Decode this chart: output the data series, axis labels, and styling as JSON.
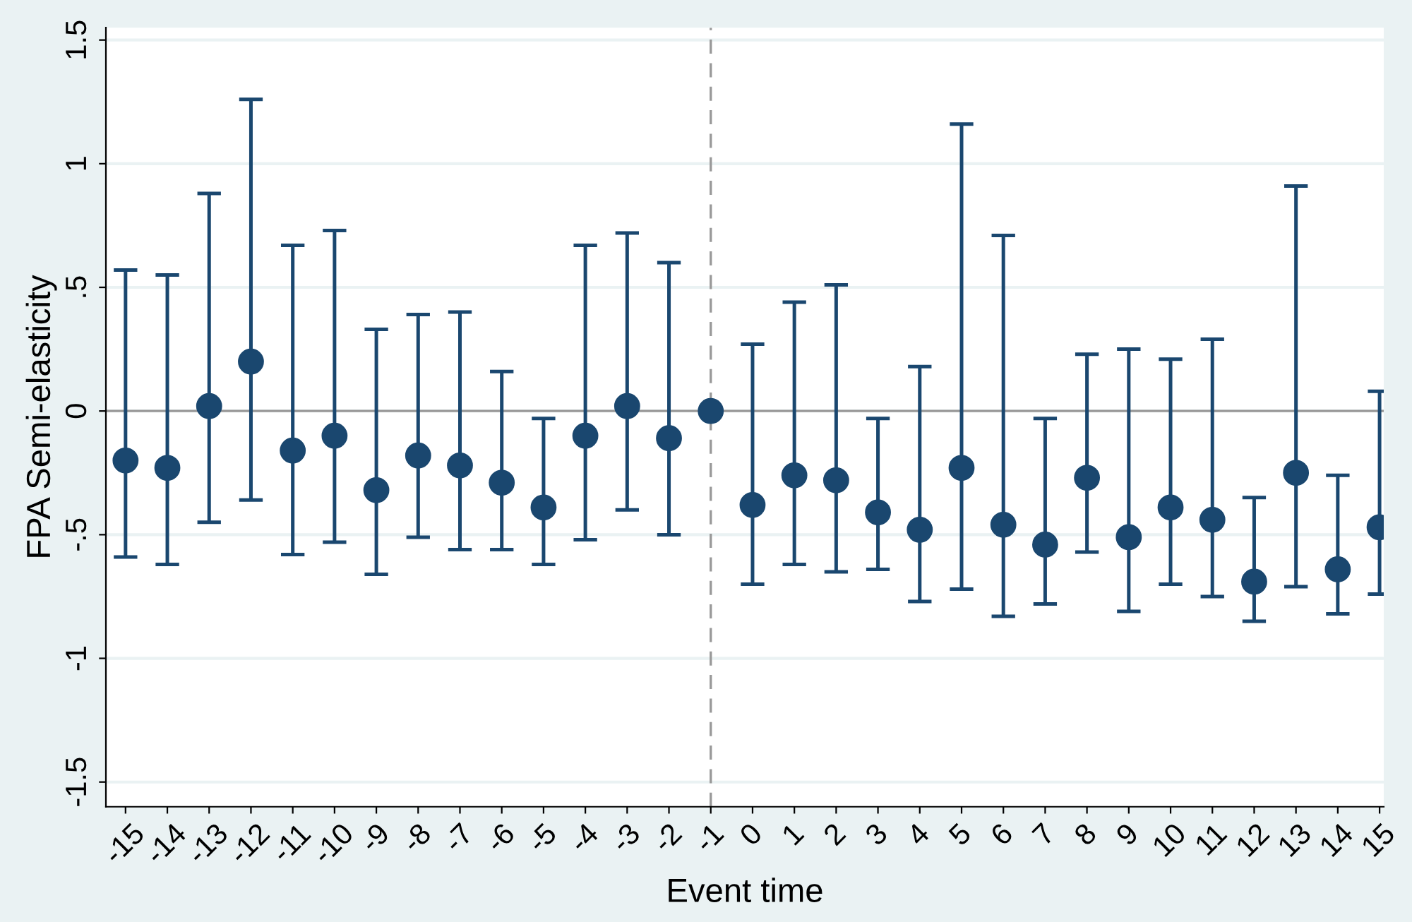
{
  "chart_data": {
    "type": "scatter",
    "xlabel": "Event time",
    "ylabel": "FPA Semi-elasticity",
    "categories": [
      "-15",
      "-14",
      "-13",
      "-12",
      "-11",
      "-10",
      "-9",
      "-8",
      "-7",
      "-6",
      "-5",
      "-4",
      "-3",
      "-2",
      "-1",
      "0",
      "1",
      "2",
      "3",
      "4",
      "5",
      "6",
      "7",
      "8",
      "9",
      "10",
      "11",
      "12",
      "13",
      "14",
      "15"
    ],
    "series": [
      {
        "color": "#1a476f",
        "values": [
          -0.2,
          -0.23,
          0.02,
          0.2,
          -0.16,
          -0.1,
          -0.32,
          -0.18,
          -0.22,
          -0.29,
          -0.39,
          -0.1,
          0.02,
          -0.11,
          0,
          -0.38,
          -0.26,
          -0.28,
          -0.41,
          -0.48,
          -0.23,
          -0.46,
          -0.54,
          -0.27,
          -0.51,
          -0.39,
          -0.44,
          -0.69,
          -0.25,
          -0.64,
          -0.47
        ],
        "errors": [
          [
            -0.59,
            0.57
          ],
          [
            -0.62,
            0.55
          ],
          [
            -0.45,
            0.88
          ],
          [
            -0.36,
            1.26
          ],
          [
            -0.58,
            0.67
          ],
          [
            -0.53,
            0.73
          ],
          [
            -0.66,
            0.33
          ],
          [
            -0.51,
            0.39
          ],
          [
            -0.56,
            0.4
          ],
          [
            -0.56,
            0.16
          ],
          [
            -0.62,
            -0.03
          ],
          [
            -0.52,
            0.67
          ],
          [
            -0.4,
            0.72
          ],
          [
            -0.5,
            0.6
          ],
          null,
          [
            -0.7,
            0.27
          ],
          [
            -0.62,
            0.44
          ],
          [
            -0.65,
            0.51
          ],
          [
            -0.64,
            -0.03
          ],
          [
            -0.77,
            0.18
          ],
          [
            -0.72,
            1.16
          ],
          [
            -0.83,
            0.71
          ],
          [
            -0.78,
            -0.03
          ],
          [
            -0.57,
            0.23
          ],
          [
            -0.81,
            0.25
          ],
          [
            -0.7,
            0.21
          ],
          [
            -0.75,
            0.29
          ],
          [
            -0.85,
            -0.35
          ],
          [
            -0.71,
            0.91
          ],
          [
            -0.82,
            -0.26
          ],
          [
            -0.74,
            0.08
          ]
        ]
      }
    ],
    "marker": "circle",
    "ylim": [
      -1.6,
      1.55
    ],
    "yticks": [
      {
        "value": -1.5,
        "label": "-1.5"
      },
      {
        "value": -1,
        "label": "-1"
      },
      {
        "value": -0.5,
        "label": "-.5"
      },
      0,
      {
        "value": 0.5,
        "label": ".5"
      },
      1,
      1.5
    ],
    "grid": "y",
    "ref_lines": [
      {
        "axis": "x",
        "value": "-1",
        "color": "#999999",
        "line_style": "dashed"
      },
      {
        "axis": "y",
        "value": 0,
        "color": "#999999",
        "line_style": "solid"
      }
    ]
  }
}
